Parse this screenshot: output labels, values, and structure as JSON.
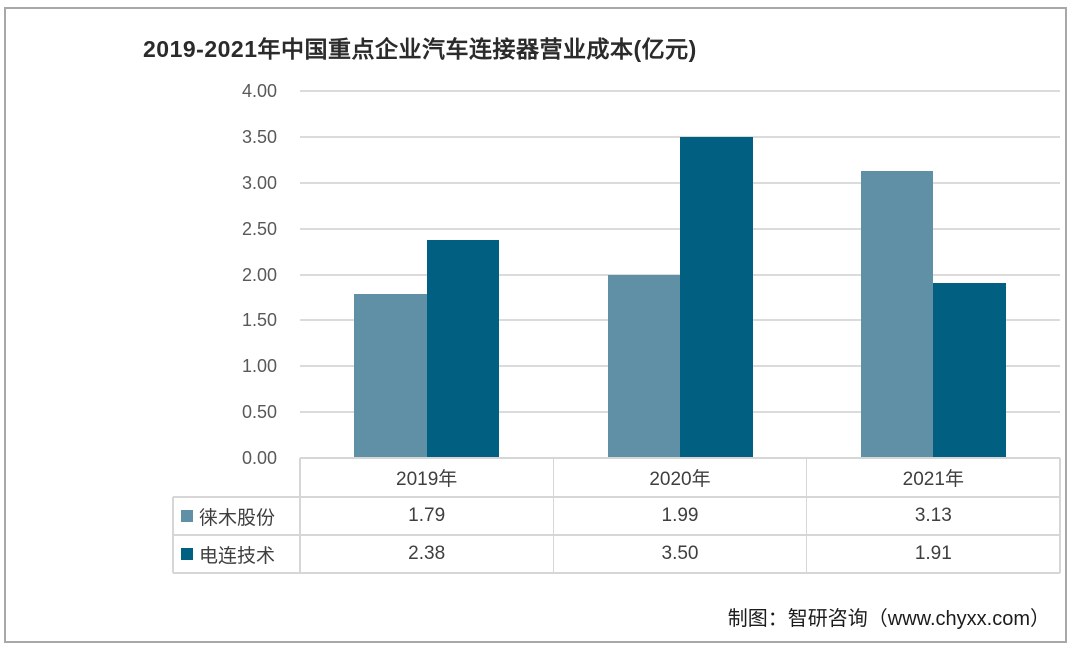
{
  "page": {
    "title": "2019-2021年中国重点企业汽车连接器营业成本(亿元)",
    "attribution": "制图：智研咨询（www.chyxx.com）"
  },
  "chart_data": {
    "type": "bar",
    "title": "2019-2021年中国重点企业汽车连接器营业成本(亿元)",
    "unit": "亿元",
    "categories": [
      "2019年",
      "2020年",
      "2021年"
    ],
    "series": [
      {
        "name": "徕木股份",
        "color": "#6090a6",
        "values": [
          1.79,
          1.99,
          3.13
        ]
      },
      {
        "name": "电连技术",
        "color": "#015f81",
        "values": [
          2.38,
          3.5,
          1.91
        ]
      }
    ],
    "ylim": [
      0,
      4
    ],
    "ytick_step": 0.5,
    "ytick_labels": [
      "0.00",
      "0.50",
      "1.00",
      "1.50",
      "2.00",
      "2.50",
      "3.00",
      "3.50",
      "4.00"
    ],
    "grid": "horizontal",
    "gridline_color": "#dbdbdb",
    "axis_label_color": "#595959",
    "legend_position": "data-table-left",
    "data_table": true,
    "value_decimals": 2
  }
}
